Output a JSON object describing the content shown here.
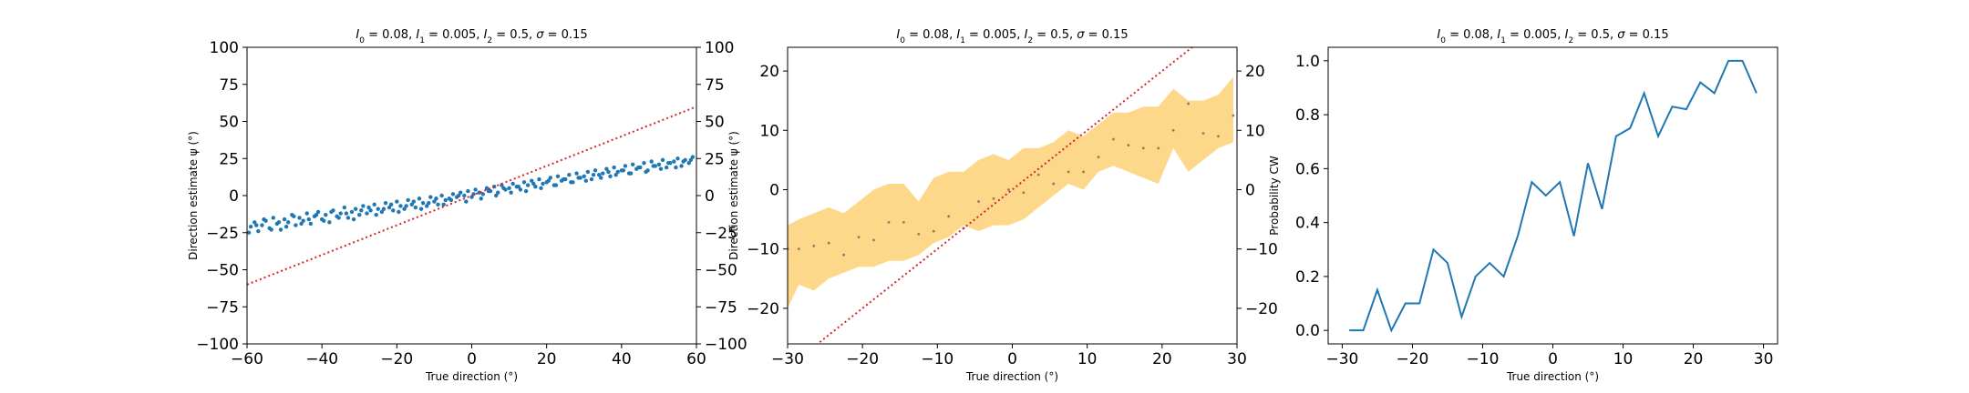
{
  "chart_data": [
    {
      "type": "scatter",
      "title": "I_0 = 0.08, I_1 = 0.005, I_2 = 0.5, σ = 0.15",
      "title_parts": {
        "I0": "0.08",
        "I1": "0.005",
        "I2": "0.5",
        "sigma": "0.15"
      },
      "xlabel": "True direction (°)",
      "ylabel": "Direction estimate ψ (°)",
      "xlim": [
        -60,
        60
      ],
      "ylim": [
        -100,
        100
      ],
      "xticks": [
        -60,
        -40,
        -20,
        0,
        20,
        40,
        60
      ],
      "yticks": [
        -100,
        -75,
        -50,
        -25,
        0,
        25,
        50,
        75,
        100
      ],
      "right_axis_ticks": true,
      "colors": {
        "points": "#1f77b4",
        "reference": "#d62728"
      },
      "reference_line": {
        "slope": 1,
        "intercept": 0,
        "style": "dotted"
      },
      "series": [
        {
          "x": [
            -59,
            -58,
            -57,
            -56,
            -55,
            -54,
            -53,
            -52,
            -51,
            -50,
            -49,
            -48,
            -47,
            -46,
            -45,
            -44,
            -43,
            -42,
            -41,
            -40,
            -39,
            -38,
            -37,
            -36,
            -35,
            -34,
            -33,
            -32,
            -31,
            -30,
            -29,
            -28,
            -27,
            -26,
            -25,
            -24,
            -23,
            -22,
            -21,
            -20,
            -19,
            -18,
            -17,
            -16,
            -15,
            -14,
            -13,
            -12,
            -11,
            -10,
            -9,
            -8,
            -7,
            -6,
            -5,
            -4,
            -3,
            -2,
            -1,
            0,
            1,
            2,
            3,
            4,
            5,
            6,
            7,
            8,
            9,
            10,
            11,
            12,
            13,
            14,
            15,
            16,
            17,
            18,
            19,
            20,
            21,
            22,
            23,
            24,
            25,
            26,
            27,
            28,
            29,
            30,
            31,
            32,
            33,
            34,
            35,
            36,
            37,
            38,
            39,
            40,
            41,
            42,
            43,
            44,
            45,
            46,
            47,
            48,
            49,
            50,
            51,
            52,
            53,
            54,
            55,
            56,
            57,
            58,
            59,
            -59.5,
            -57.5,
            -55.5,
            -53.5,
            -51.5,
            -49.5,
            -47.5,
            -45.5,
            -43.5,
            -41.5,
            -39.5,
            -37.5,
            -35.5,
            -33.5,
            -31.5,
            -29.5,
            -27.5,
            -25.5,
            -23.5,
            -21.5,
            -19.5,
            -17.5,
            -15.5,
            -13.5,
            -11.5,
            -9.5,
            -7.5,
            -5.5,
            -3.5,
            -1.5,
            0.5,
            2.5,
            4.5,
            6.5,
            8.5,
            10.5,
            12.5,
            14.5,
            16.5,
            18.5,
            20.5,
            22.5,
            24.5,
            26.5,
            28.5,
            30.5,
            32.5,
            34.5,
            36.5,
            38.5,
            40.5,
            42.5,
            44.5,
            46.5,
            48.5,
            50.5,
            52.5,
            54.5,
            56.5,
            58.5
          ],
          "y": [
            -21,
            -18,
            -24,
            -20,
            -17,
            -22,
            -15,
            -19,
            -23,
            -16,
            -18,
            -13,
            -20,
            -15,
            -17,
            -12,
            -19,
            -14,
            -11,
            -16,
            -13,
            -18,
            -10,
            -14,
            -12,
            -8,
            -15,
            -11,
            -9,
            -13,
            -7,
            -12,
            -10,
            -6,
            -9,
            -11,
            -5,
            -8,
            -10,
            -4,
            -7,
            -9,
            -3,
            -6,
            -8,
            -2,
            -5,
            -7,
            -1,
            -4,
            -6,
            0,
            -3,
            -2,
            1,
            -1,
            2,
            0,
            3,
            -1,
            4,
            2,
            1,
            5,
            3,
            6,
            2,
            7,
            4,
            5,
            8,
            6,
            4,
            9,
            7,
            10,
            6,
            11,
            8,
            9,
            12,
            7,
            13,
            10,
            11,
            14,
            9,
            15,
            12,
            13,
            16,
            11,
            17,
            14,
            15,
            18,
            13,
            19,
            16,
            17,
            20,
            15,
            21,
            18,
            19,
            22,
            17,
            23,
            20,
            21,
            24,
            19,
            22,
            23,
            25,
            20,
            24,
            22,
            26,
            -25,
            -20,
            -16,
            -23,
            -18,
            -21,
            -14,
            -19,
            -16,
            -13,
            -17,
            -11,
            -15,
            -12,
            -16,
            -10,
            -8,
            -13,
            -9,
            -6,
            -11,
            -7,
            -4,
            -9,
            -5,
            -2,
            -6,
            -3,
            0,
            -4,
            1,
            -2,
            3,
            0,
            5,
            2,
            6,
            3,
            8,
            5,
            10,
            7,
            11,
            9,
            12,
            10,
            14,
            12,
            16,
            14,
            17,
            15,
            19,
            16,
            20,
            18,
            22,
            19,
            23,
            24
          ]
        }
      ]
    },
    {
      "type": "line",
      "title": "I_0 = 0.08, I_1 = 0.005, I_2 = 0.5, σ = 0.15",
      "title_parts": {
        "I0": "0.08",
        "I1": "0.005",
        "I2": "0.5",
        "sigma": "0.15"
      },
      "xlabel": "True direction (°)",
      "ylabel": "Direction estimate ψ (°)",
      "xlim": [
        -30,
        30
      ],
      "ylim": [
        -26,
        24
      ],
      "xticks": [
        -30,
        -20,
        -10,
        0,
        10,
        20,
        30
      ],
      "yticks": [
        -20,
        -10,
        0,
        10,
        20
      ],
      "right_axis_ticks": true,
      "colors": {
        "band": "#fdd78a",
        "points": "#8c7b6a",
        "reference": "#d62728"
      },
      "reference_line": {
        "slope": 1,
        "intercept": 0,
        "style": "dotted"
      },
      "x": [
        -30,
        -28.5,
        -26.5,
        -24.5,
        -22.5,
        -20.5,
        -18.5,
        -16.5,
        -14.5,
        -12.5,
        -10.5,
        -8.5,
        -6.5,
        -4.5,
        -2.5,
        -0.5,
        1.5,
        3.5,
        5.5,
        7.5,
        9.5,
        11.5,
        13.5,
        15.5,
        17.5,
        19.5,
        21.5,
        23.5,
        25.5,
        27.5,
        29.5
      ],
      "series": [
        {
          "name": "mean",
          "values": [
            -10,
            -10,
            -9.5,
            -9,
            -11,
            -8,
            -8.5,
            -5.5,
            -5.5,
            -7.5,
            -7,
            -4.5,
            -6.5,
            -2,
            -1.5,
            0,
            -0.5,
            2.5,
            1,
            3,
            3,
            5.5,
            8.5,
            7.5,
            7,
            7,
            10,
            14.5,
            9.5,
            9,
            12.5
          ]
        },
        {
          "name": "upper",
          "values": [
            -6,
            -5,
            -4,
            -3,
            -4,
            -2,
            0,
            1,
            1,
            -2,
            2,
            3,
            3,
            5,
            6,
            5,
            7,
            7,
            8,
            10,
            9,
            11,
            13,
            13,
            14,
            14,
            17,
            15,
            15,
            16,
            19
          ]
        },
        {
          "name": "lower",
          "values": [
            -20,
            -16,
            -17,
            -15,
            -14,
            -13,
            -13,
            -12,
            -12,
            -11,
            -9,
            -8,
            -6,
            -7,
            -6,
            -6,
            -5,
            -3,
            -1,
            1,
            0,
            3,
            4,
            3,
            2,
            1,
            7,
            3,
            5,
            7,
            8
          ]
        }
      ]
    },
    {
      "type": "line",
      "title": "I_0 = 0.08, I_1 = 0.005, I_2 = 0.5, σ = 0.15",
      "title_parts": {
        "I0": "0.08",
        "I1": "0.005",
        "I2": "0.5",
        "sigma": "0.15"
      },
      "xlabel": "True direction (°)",
      "ylabel": "Probability CW",
      "xlim": [
        -32,
        32
      ],
      "ylim": [
        -0.05,
        1.05
      ],
      "xticks": [
        -30,
        -20,
        -10,
        0,
        10,
        20,
        30
      ],
      "yticks": [
        0.0,
        0.2,
        0.4,
        0.6,
        0.8,
        1.0
      ],
      "ytick_labels": [
        "0.0",
        "0.2",
        "0.4",
        "0.6",
        "0.8",
        "1.0"
      ],
      "colors": {
        "line": "#1f77b4"
      },
      "x": [
        -29,
        -27,
        -25,
        -23,
        -21,
        -19,
        -17,
        -15,
        -13,
        -11,
        -9,
        -7,
        -5,
        -3,
        -1,
        1,
        3,
        5,
        7,
        9,
        11,
        13,
        15,
        17,
        19,
        21,
        23,
        25,
        27,
        29
      ],
      "series": [
        {
          "values": [
            0.0,
            0.0,
            0.15,
            0.0,
            0.1,
            0.1,
            0.3,
            0.25,
            0.05,
            0.2,
            0.25,
            0.2,
            0.35,
            0.55,
            0.5,
            0.55,
            0.35,
            0.62,
            0.45,
            0.72,
            0.75,
            0.88,
            0.72,
            0.83,
            0.82,
            0.92,
            0.88,
            1.0,
            1.0,
            0.88
          ]
        }
      ]
    }
  ]
}
